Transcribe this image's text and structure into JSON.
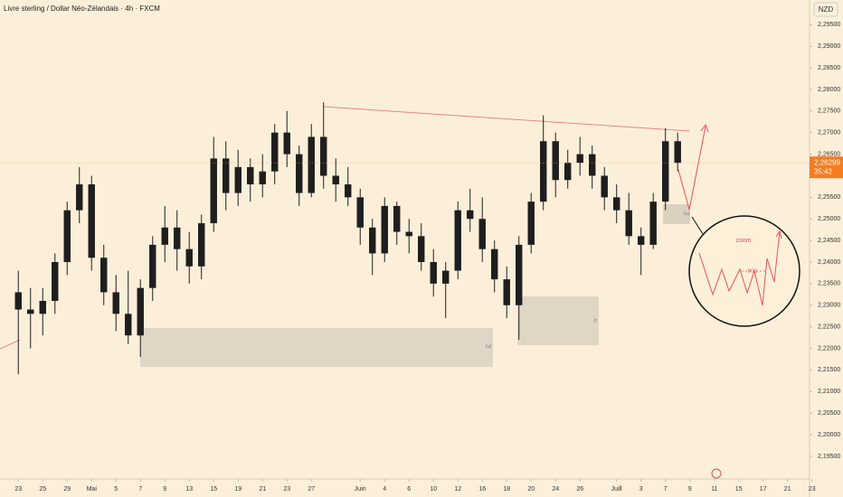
{
  "chart_data": {
    "type": "candlestick",
    "title": "Livre sterling / Dollar Néo-Zélandais · 4h · FXCM",
    "currency": "NZD",
    "color": "#1e1e1e",
    "open": [
      2.233,
      2.229,
      2.228,
      2.231,
      2.24,
      2.252,
      2.258,
      2.241,
      2.233,
      2.228,
      2.223,
      2.234,
      2.244,
      2.248,
      2.243,
      2.239,
      2.249,
      2.264,
      2.256,
      2.262,
      2.258,
      2.261,
      2.27,
      2.265,
      2.256,
      2.269,
      2.26,
      2.258,
      2.255,
      2.248,
      2.242,
      2.253,
      2.247,
      2.246,
      2.24,
      2.235,
      2.238,
      2.252,
      2.25,
      2.243,
      2.236,
      2.23,
      2.244,
      2.254,
      2.268,
      2.259,
      2.263,
      2.265,
      2.26,
      2.255,
      2.252,
      2.246,
      2.244,
      2.254,
      2.268
    ],
    "high": [
      2.238,
      2.234,
      2.234,
      2.242,
      2.254,
      2.262,
      2.26,
      2.244,
      2.237,
      2.238,
      2.236,
      2.246,
      2.253,
      2.252,
      2.247,
      2.251,
      2.269,
      2.268,
      2.266,
      2.264,
      2.265,
      2.272,
      2.275,
      2.267,
      2.272,
      2.277,
      2.264,
      2.262,
      2.257,
      2.25,
      2.255,
      2.254,
      2.25,
      2.249,
      2.243,
      2.24,
      2.254,
      2.257,
      2.255,
      2.245,
      2.239,
      2.246,
      2.256,
      2.274,
      2.27,
      2.266,
      2.269,
      2.267,
      2.262,
      2.258,
      2.256,
      2.248,
      2.256,
      2.271,
      2.27
    ],
    "low": [
      2.214,
      2.22,
      2.223,
      2.228,
      2.237,
      2.249,
      2.238,
      2.23,
      2.224,
      2.221,
      2.218,
      2.231,
      2.24,
      2.238,
      2.235,
      2.236,
      2.247,
      2.252,
      2.253,
      2.254,
      2.255,
      2.258,
      2.262,
      2.253,
      2.255,
      2.257,
      2.254,
      2.253,
      2.244,
      2.237,
      2.24,
      2.244,
      2.242,
      2.238,
      2.232,
      2.227,
      2.236,
      2.247,
      2.24,
      2.233,
      2.227,
      2.222,
      2.242,
      2.252,
      2.255,
      2.257,
      2.26,
      2.257,
      2.252,
      2.249,
      2.244,
      2.237,
      2.243,
      2.252,
      2.261
    ],
    "close": [
      2.229,
      2.228,
      2.231,
      2.24,
      2.252,
      2.258,
      2.241,
      2.233,
      2.228,
      2.223,
      2.234,
      2.244,
      2.248,
      2.243,
      2.239,
      2.249,
      2.264,
      2.256,
      2.262,
      2.258,
      2.261,
      2.27,
      2.265,
      2.256,
      2.269,
      2.26,
      2.258,
      2.255,
      2.248,
      2.242,
      2.253,
      2.247,
      2.246,
      2.24,
      2.235,
      2.238,
      2.252,
      2.25,
      2.243,
      2.236,
      2.23,
      2.244,
      2.254,
      2.268,
      2.259,
      2.263,
      2.265,
      2.26,
      2.255,
      2.252,
      2.246,
      2.244,
      2.254,
      2.268,
      2.26299
    ],
    "last_label": "2,26299",
    "countdown": "35:42",
    "xlim": [
      -1.5,
      64.8
    ],
    "xticks": [
      {
        "value": 0,
        "label": "23"
      },
      {
        "value": 2,
        "label": "25"
      },
      {
        "value": 4,
        "label": "29"
      },
      {
        "value": 6,
        "label": "Mai"
      },
      {
        "value": 8,
        "label": "5"
      },
      {
        "value": 10,
        "label": "7"
      },
      {
        "value": 12,
        "label": "9"
      },
      {
        "value": 14,
        "label": "13"
      },
      {
        "value": 16,
        "label": "15"
      },
      {
        "value": 18,
        "label": "19"
      },
      {
        "value": 20,
        "label": "21"
      },
      {
        "value": 22,
        "label": "23"
      },
      {
        "value": 24,
        "label": "27"
      },
      {
        "value": 28,
        "label": "Juin"
      },
      {
        "value": 30,
        "label": "4"
      },
      {
        "value": 32,
        "label": "6"
      },
      {
        "value": 34,
        "label": "10"
      },
      {
        "value": 36,
        "label": "12"
      },
      {
        "value": 38,
        "label": "16"
      },
      {
        "value": 40,
        "label": "18"
      },
      {
        "value": 42,
        "label": "20"
      },
      {
        "value": 44,
        "label": "24"
      },
      {
        "value": 46,
        "label": "26"
      },
      {
        "value": 49,
        "label": "Juill"
      },
      {
        "value": 51,
        "label": "3"
      },
      {
        "value": 53,
        "label": "7"
      },
      {
        "value": 55,
        "label": "9"
      },
      {
        "value": 57,
        "label": "11"
      },
      {
        "value": 59,
        "label": "15"
      },
      {
        "value": 61,
        "label": "17"
      },
      {
        "value": 63,
        "label": "21"
      },
      {
        "value": 65,
        "label": "23"
      }
    ],
    "ylim": [
      2.18975,
      2.30072
    ],
    "yticks": [
      {
        "value": 2.195,
        "label": "2,19500"
      },
      {
        "value": 2.2,
        "label": "2,20000"
      },
      {
        "value": 2.205,
        "label": "2,20500"
      },
      {
        "value": 2.21,
        "label": "2,21000"
      },
      {
        "value": 2.215,
        "label": "2,21500"
      },
      {
        "value": 2.22,
        "label": "2,22000"
      },
      {
        "value": 2.225,
        "label": "2,22500"
      },
      {
        "value": 2.23,
        "label": "2,23000"
      },
      {
        "value": 2.235,
        "label": "2,23500"
      },
      {
        "value": 2.24,
        "label": "2,24000"
      },
      {
        "value": 2.245,
        "label": "2,24500"
      },
      {
        "value": 2.25,
        "label": "2,25000"
      },
      {
        "value": 2.255,
        "label": "2,25500"
      },
      {
        "value": 2.26,
        "label": "2,26000"
      },
      {
        "value": 2.265,
        "label": "2,26500"
      },
      {
        "value": 2.27,
        "label": "2,27000"
      },
      {
        "value": 2.275,
        "label": "2,27500"
      },
      {
        "value": 2.28,
        "label": "2,28000"
      },
      {
        "value": 2.285,
        "label": "2,28500"
      },
      {
        "value": 2.29,
        "label": "2,29000"
      },
      {
        "value": 2.295,
        "label": "2,29500"
      }
    ],
    "annotations": {
      "zone_1": "h4",
      "zone_2": "d",
      "zone_3": "h4",
      "zoom": "zoom",
      "bos": "BOS"
    }
  }
}
